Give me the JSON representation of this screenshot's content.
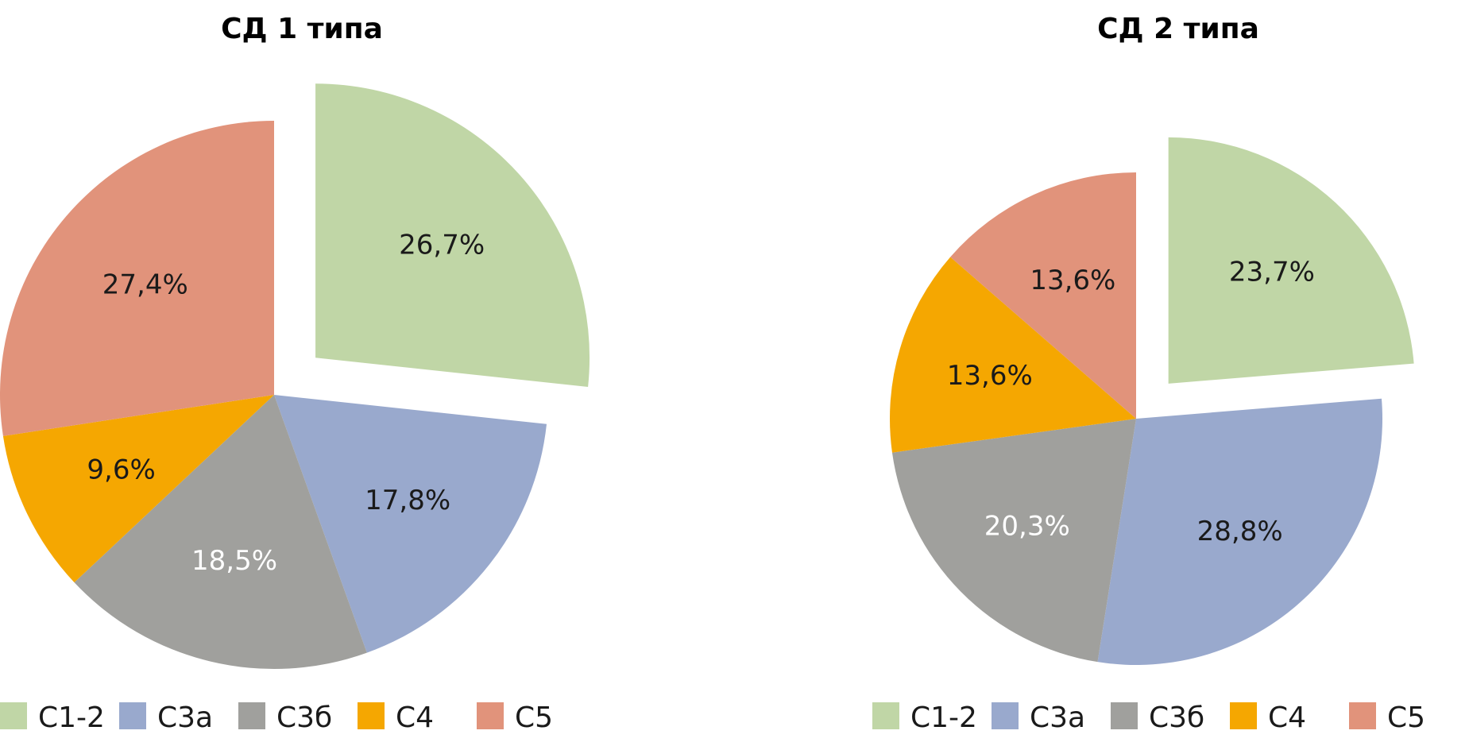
{
  "chart_data": [
    {
      "type": "pie",
      "title": "СД 1 типа",
      "categories": [
        "С1-2",
        "С3а",
        "С3б",
        "С4",
        "С5"
      ],
      "values": [
        26.7,
        17.8,
        18.5,
        9.6,
        27.4
      ],
      "labels": [
        "26,7%",
        "17,8%",
        "18,5%",
        "9,6%",
        "27,4%"
      ],
      "colors": [
        "#c0d6a6",
        "#99a9cd",
        "#a0a09d",
        "#f5a701",
        "#e1937b"
      ],
      "exploded": [
        "С1-2"
      ],
      "legend": "bottom"
    },
    {
      "type": "pie",
      "title": "СД 2 типа",
      "categories": [
        "С1-2",
        "С3а",
        "С3б",
        "С4",
        "С5"
      ],
      "values": [
        23.7,
        28.8,
        20.3,
        13.6,
        13.6
      ],
      "labels": [
        "23,7%",
        "28,8%",
        "20,3%",
        "13,6%",
        "13,6%"
      ],
      "colors": [
        "#c0d6a6",
        "#99a9cd",
        "#a0a09d",
        "#f5a701",
        "#e1937b"
      ],
      "exploded": [
        "С1-2"
      ],
      "legend": "bottom"
    }
  ]
}
